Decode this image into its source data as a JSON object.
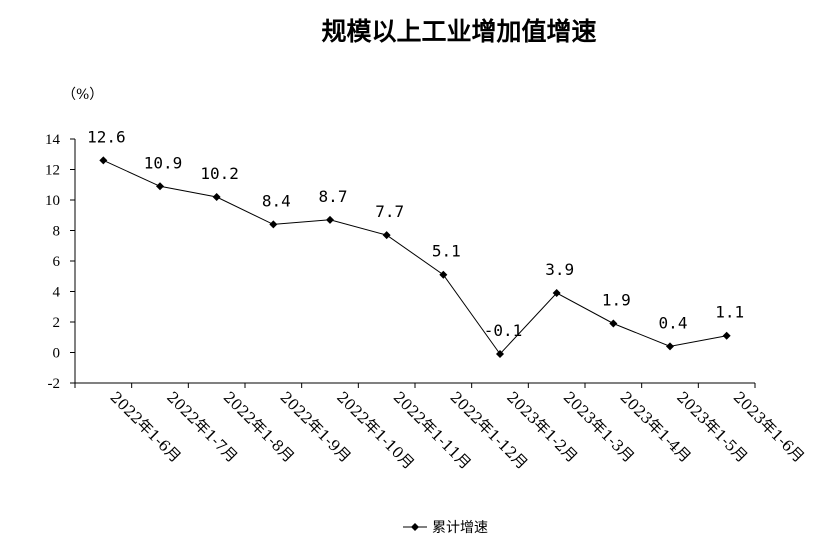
{
  "chart_data": {
    "type": "line",
    "title": "规模以上工业增加值增速",
    "unit_label": "（%）",
    "ylim": [
      -2,
      14
    ],
    "yticks": [
      14,
      12,
      10,
      8,
      6,
      4,
      2,
      0,
      -2
    ],
    "categories": [
      "2022年1-6月",
      "2022年1-7月",
      "2022年1-8月",
      "2022年1-9月",
      "2022年1-10月",
      "2022年1-11月",
      "2022年1-12月",
      "2023年1-2月",
      "2023年1-3月",
      "2023年1-4月",
      "2023年1-5月",
      "2023年1-6月"
    ],
    "series": [
      {
        "name": "累计增速",
        "values": [
          12.6,
          10.9,
          10.2,
          8.4,
          8.7,
          7.7,
          5.1,
          -0.1,
          3.9,
          1.9,
          0.4,
          1.1
        ],
        "labels": [
          "12.6",
          "10.9",
          "10.2",
          "8.4",
          "8.7",
          "7.7",
          "5.1",
          "-0.1",
          "3.9",
          "1.9",
          "0.4",
          "1.1"
        ]
      }
    ],
    "legend": "bottom-center",
    "grid": false,
    "line_color": "#000000"
  }
}
